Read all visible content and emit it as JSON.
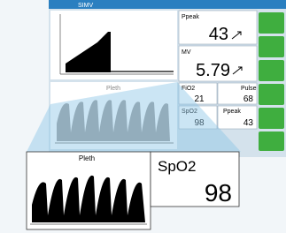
{
  "header": {
    "mode": "SIMV"
  },
  "waveform": {
    "label": "Pleth"
  },
  "numerics": [
    {
      "label": "Ppeak",
      "value": 43
    },
    {
      "label": "MV",
      "value": 5.79
    },
    {
      "label": "FiO2",
      "value": 21
    },
    {
      "label": "Pulse",
      "value": 68
    },
    {
      "label": "SpO2",
      "value": 98
    },
    {
      "label": "Ppeak",
      "value": 43
    }
  ],
  "zoom": {
    "waveform_label": "Pleth",
    "label": "SpO2",
    "value": 98
  }
}
